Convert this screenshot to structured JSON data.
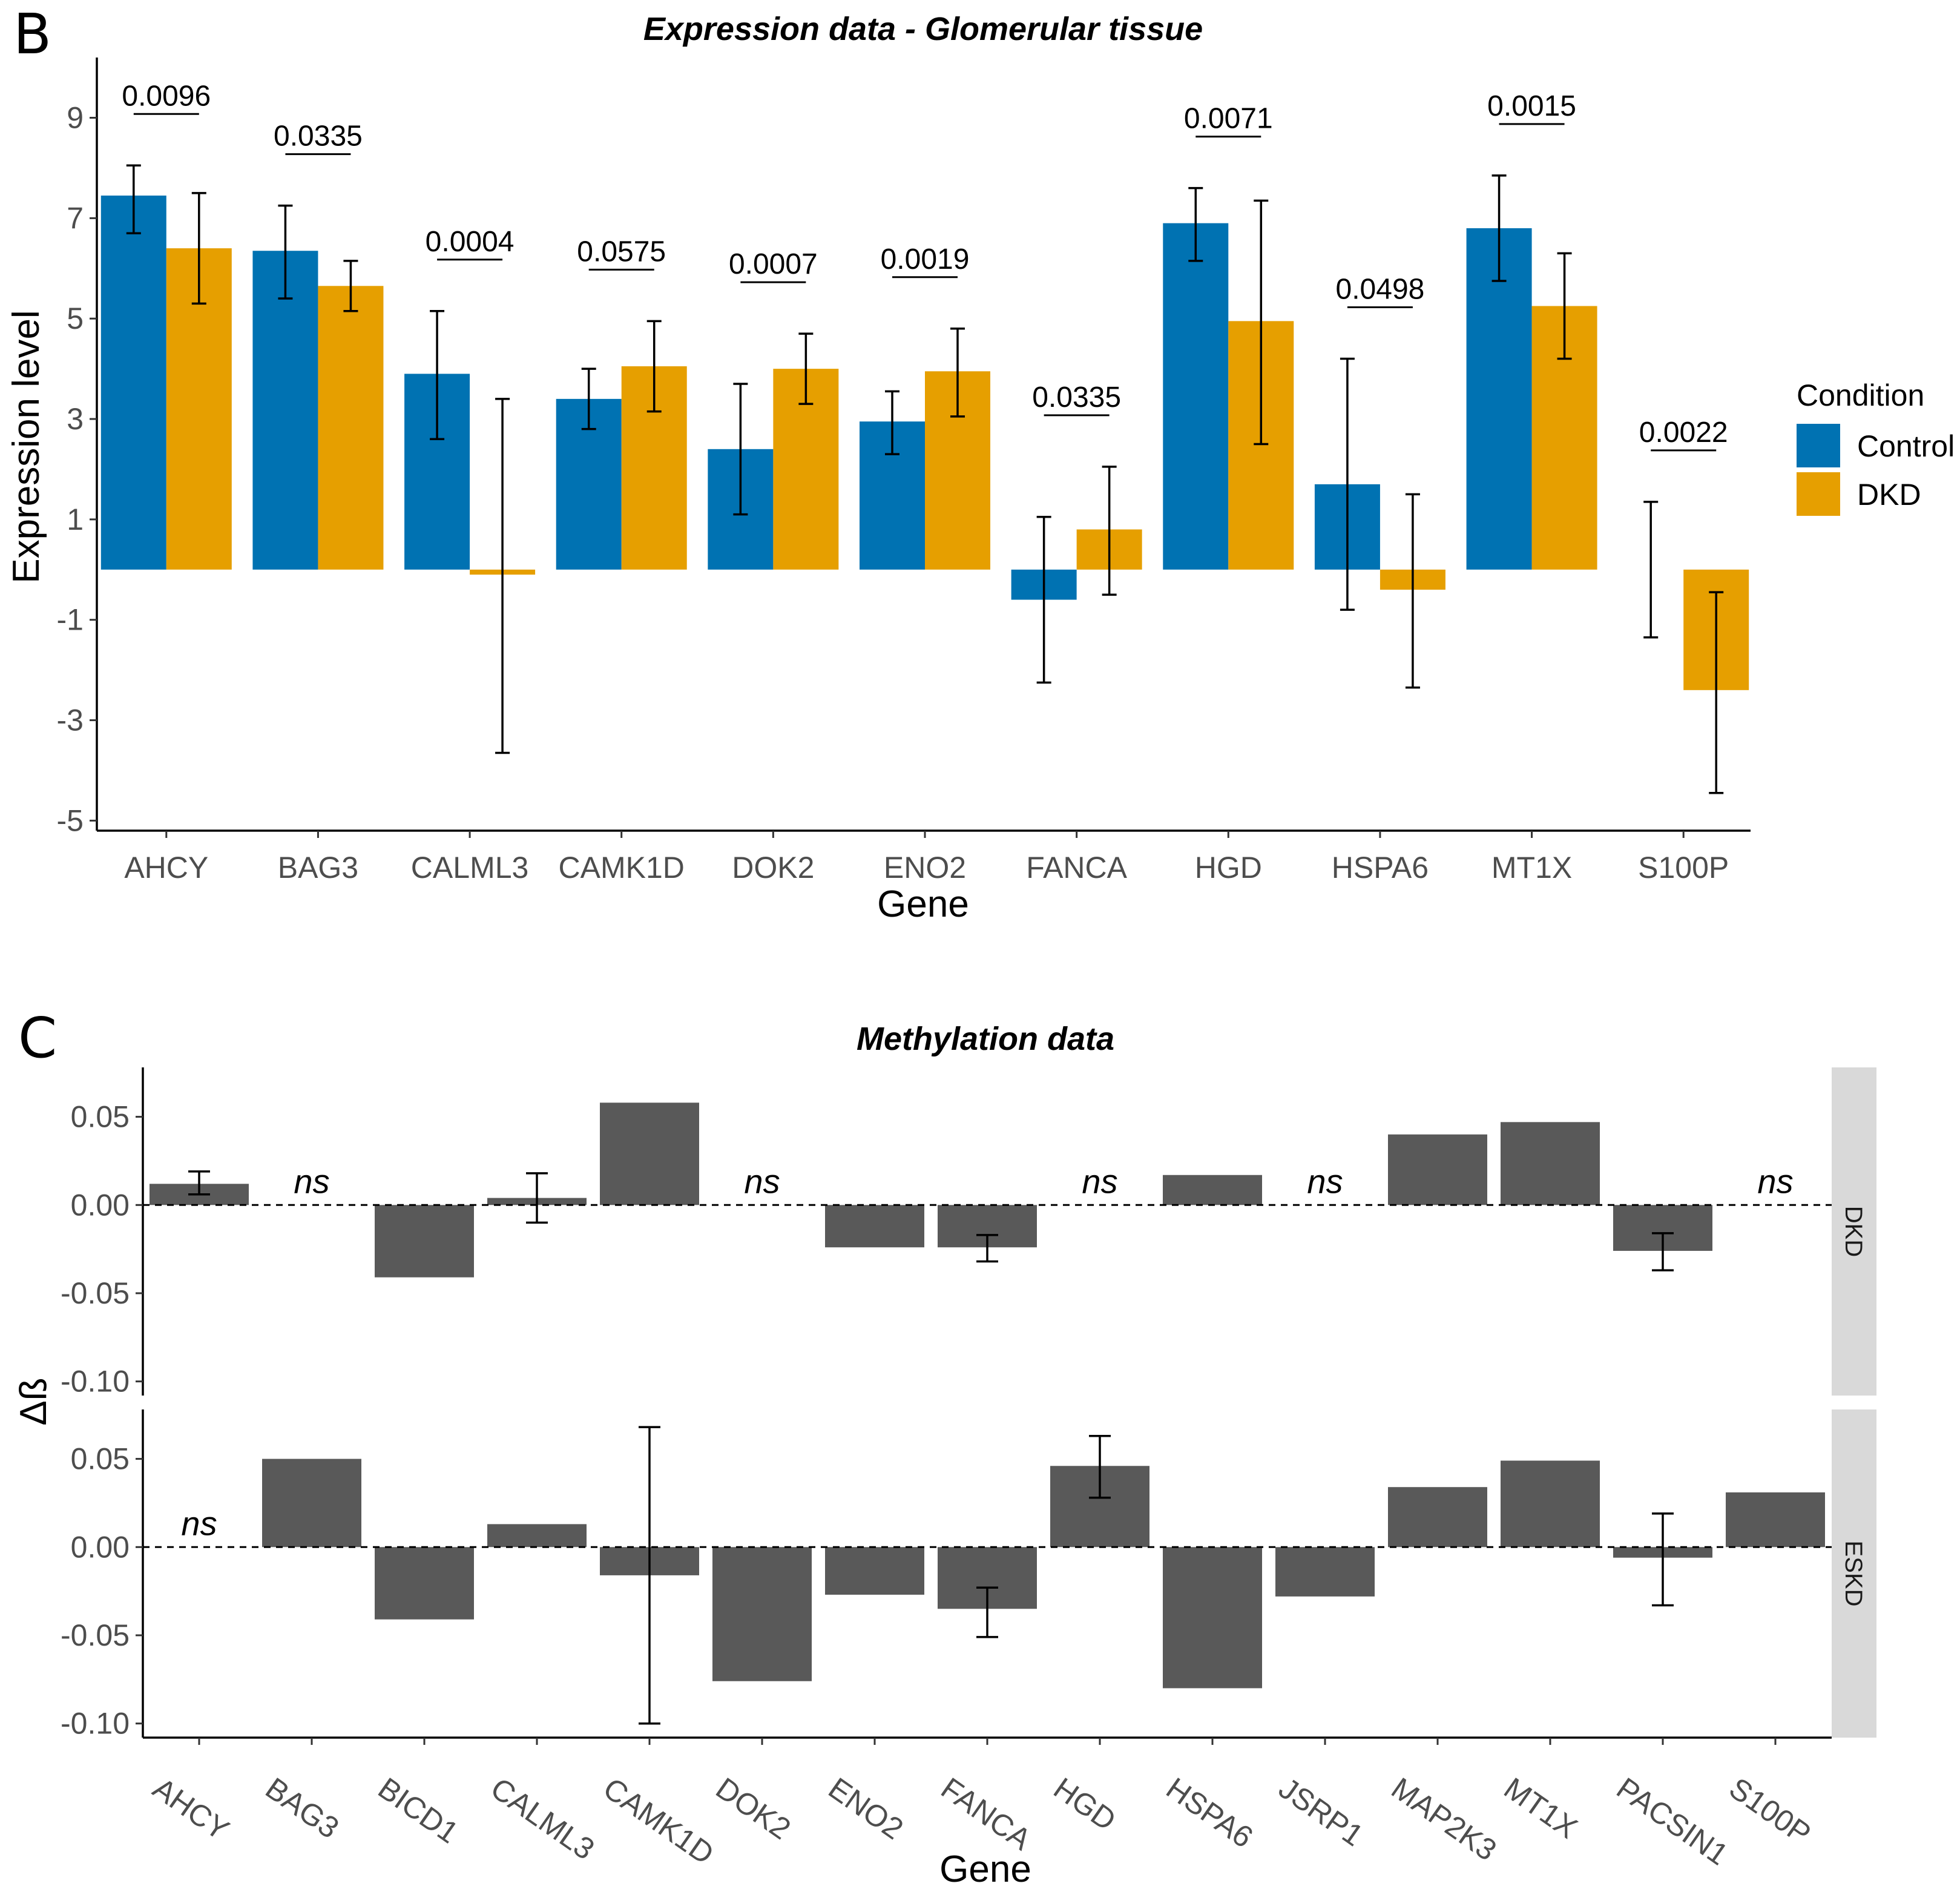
{
  "chart_data": [
    {
      "panel": "B",
      "type": "bar",
      "title": "Expression data - Glomerular tissue",
      "xlabel": "Gene",
      "ylabel": "Expression level",
      "ylim": [
        -5.2,
        10.2
      ],
      "yticks": [
        "9",
        "7",
        "5",
        "3",
        "1",
        "-1",
        "-3",
        "-5"
      ],
      "categories": [
        "AHCY",
        "BAG3",
        "CALML3",
        "CAMK1D",
        "DOK2",
        "ENO2",
        "FANCA",
        "HGD",
        "HSPA6",
        "MT1X",
        "S100P"
      ],
      "legend_title": "Condition",
      "series": [
        {
          "name": "Control",
          "color": "#0072B2",
          "values": [
            7.45,
            6.35,
            3.9,
            3.4,
            2.4,
            2.95,
            -0.6,
            6.9,
            1.7,
            6.8,
            0.0
          ],
          "err_low": [
            6.7,
            5.4,
            2.6,
            2.8,
            1.1,
            2.3,
            -2.25,
            6.15,
            -0.8,
            5.75,
            -1.35
          ],
          "err_high": [
            8.05,
            7.25,
            5.15,
            4.0,
            3.7,
            3.55,
            1.05,
            7.6,
            4.2,
            7.85,
            1.35
          ]
        },
        {
          "name": "DKD",
          "color": "#E69F00",
          "values": [
            6.4,
            5.65,
            -0.1,
            4.05,
            4.0,
            3.95,
            0.8,
            4.95,
            -0.4,
            5.25,
            -2.4
          ],
          "err_low": [
            5.3,
            5.15,
            -3.65,
            3.15,
            3.3,
            3.05,
            -0.5,
            2.5,
            -2.35,
            4.2,
            -4.45
          ],
          "err_high": [
            7.5,
            6.15,
            3.4,
            4.95,
            4.7,
            4.8,
            2.05,
            7.35,
            1.5,
            6.3,
            -0.45
          ]
        }
      ],
      "pvalues": [
        "0.0096",
        "0.0335",
        "0.0004",
        "0.0575",
        "0.0007",
        "0.0019",
        "0.0335",
        "0.0071",
        "0.0498",
        "0.0015",
        "0.0022"
      ]
    },
    {
      "panel": "C",
      "type": "bar",
      "title": "Methylation data",
      "xlabel": "Gene",
      "ylabel": "Δß",
      "ylim": [
        -0.108,
        0.078
      ],
      "yticks": [
        "0.05",
        "0.00",
        "-0.05",
        "-0.10"
      ],
      "ns_label": "ns",
      "bar_color": "#595959",
      "categories": [
        "AHCY",
        "BAG3",
        "BICD1",
        "CALML3",
        "CAMK1D",
        "DOK2",
        "ENO2",
        "FANCA",
        "HGD",
        "HSPA6",
        "JSRP1",
        "MAP2K3",
        "MT1X",
        "PACSIN1",
        "S100P"
      ],
      "facets": [
        {
          "name": "DKD",
          "values": [
            0.012,
            null,
            -0.041,
            0.004,
            0.058,
            null,
            -0.024,
            -0.024,
            null,
            0.017,
            null,
            0.04,
            0.047,
            -0.026,
            null
          ],
          "err_low": [
            0.006,
            null,
            null,
            -0.01,
            null,
            null,
            null,
            -0.032,
            null,
            null,
            null,
            null,
            null,
            -0.037,
            null
          ],
          "err_high": [
            0.019,
            null,
            null,
            0.018,
            null,
            null,
            null,
            -0.017,
            null,
            null,
            null,
            null,
            null,
            -0.016,
            null
          ]
        },
        {
          "name": "ESKD",
          "values": [
            null,
            0.05,
            -0.041,
            0.013,
            -0.016,
            -0.076,
            -0.027,
            -0.035,
            0.046,
            -0.08,
            -0.028,
            0.034,
            0.049,
            -0.006,
            0.031
          ],
          "err_low": [
            null,
            null,
            null,
            null,
            -0.1,
            null,
            null,
            -0.051,
            0.028,
            null,
            null,
            null,
            null,
            -0.033,
            null
          ],
          "err_high": [
            null,
            null,
            null,
            null,
            0.068,
            null,
            null,
            -0.023,
            0.063,
            null,
            null,
            null,
            null,
            0.019,
            null
          ]
        }
      ]
    }
  ]
}
